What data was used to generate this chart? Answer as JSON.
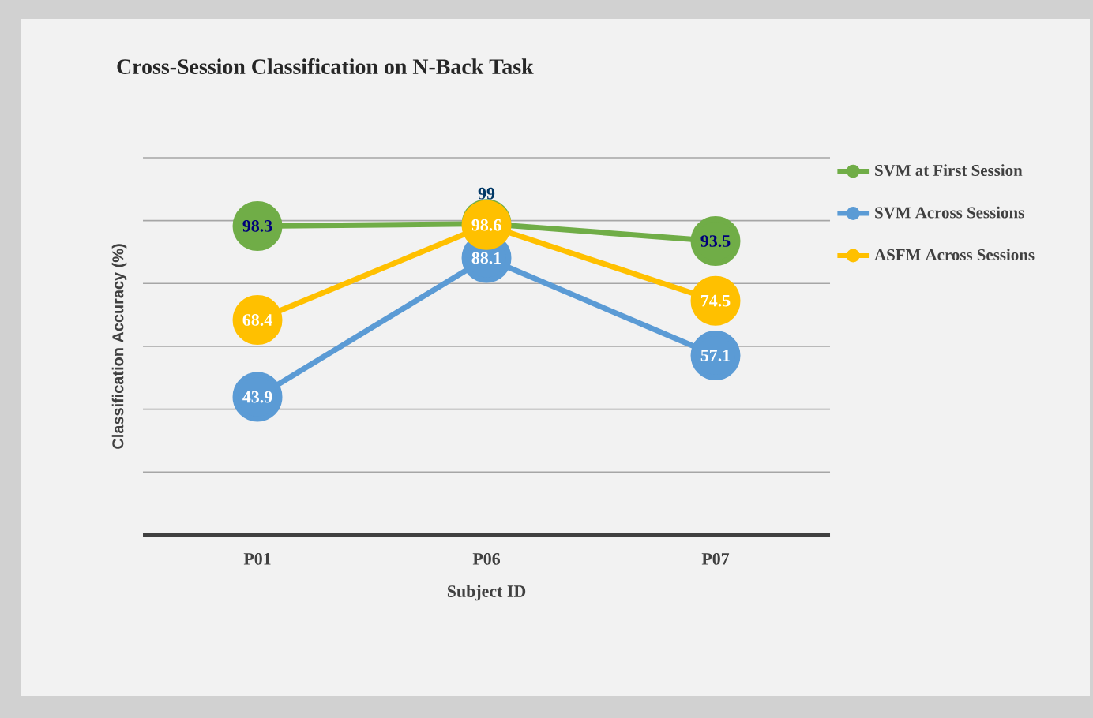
{
  "chart_data": {
    "type": "line",
    "title": "Cross-Session Classification on N-Back Task",
    "xlabel": "Subject ID",
    "ylabel": "Classification Accuracy (%)",
    "categories": [
      "P01",
      "P06",
      "P07"
    ],
    "series": [
      {
        "name": "SVM at First Session",
        "color": "#70ad47",
        "values": [
          98.3,
          99,
          93.5
        ],
        "value_labels": [
          "98.3",
          "99",
          "93.5"
        ]
      },
      {
        "name": "SVM Across Sessions",
        "color": "#5b9bd5",
        "values": [
          43.9,
          88.1,
          57.1
        ],
        "value_labels": [
          "43.9",
          "88.1",
          "57.1"
        ]
      },
      {
        "name": "ASFM Across Sessions",
        "color": "#ffc000",
        "values": [
          68.4,
          98.6,
          74.5
        ],
        "value_labels": [
          "68.4",
          "98.6",
          "74.5"
        ]
      }
    ],
    "ylim": [
      0,
      120
    ],
    "yticks": [
      {
        "value": 0,
        "label": null
      },
      {
        "value": 20,
        "label": null
      },
      {
        "value": 40,
        "label": null
      },
      {
        "value": 60,
        "label": null
      },
      {
        "value": 80,
        "label": null
      },
      {
        "value": 100,
        "label": null
      },
      {
        "value": 120,
        "label": null
      }
    ],
    "tick_labels": "x",
    "grid": "y",
    "legend": "top right",
    "marker": "circle",
    "line_style": "solid"
  }
}
